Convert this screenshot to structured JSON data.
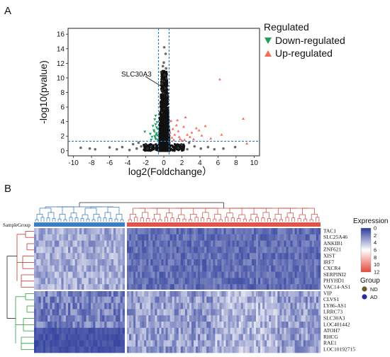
{
  "panel_a": {
    "letter": "A",
    "legend": {
      "title": "Regulated",
      "items": [
        {
          "label": "Down-regulated",
          "color": "#1f9e5a",
          "icon": "down-triangle-icon"
        },
        {
          "label": "Up-regulated",
          "color": "#f26f5e",
          "icon": "up-triangle-icon"
        }
      ]
    },
    "annotation": "SLC30A3",
    "chart_data": {
      "type": "scatter",
      "xlabel": "log2(Foldchange）",
      "ylabel": "-log10(pvalue)",
      "xlim": [
        -10.6,
        10.6
      ],
      "ylim": [
        -0.7,
        16.8
      ],
      "x_ticks": [
        "-10",
        "-8",
        "-6",
        "-4",
        "-2",
        "0",
        "2",
        "4",
        "6",
        "8",
        "10"
      ],
      "y_ticks": [
        "0",
        "2",
        "4",
        "6",
        "8",
        "10",
        "12",
        "14",
        "16"
      ],
      "threshold_lines": {
        "x": [
          -0.585,
          0.585
        ],
        "y": 1.3
      },
      "series": [
        {
          "name": "Down-regulated",
          "marker": "down-triangle",
          "color": "#1f9e5a",
          "points": [
            [
              -0.9,
              1.6
            ],
            [
              -1.0,
              2.0
            ],
            [
              -0.8,
              2.4
            ],
            [
              -1.1,
              2.8
            ],
            [
              -0.7,
              3.0
            ],
            [
              -1.2,
              3.4
            ],
            [
              -0.9,
              3.6
            ],
            [
              -0.75,
              3.9
            ],
            [
              -1.0,
              4.3
            ],
            [
              -0.85,
              2.2
            ],
            [
              -1.3,
              1.9
            ],
            [
              -0.7,
              1.5
            ],
            [
              -1.5,
              2.3
            ],
            [
              -0.95,
              1.8
            ],
            [
              -0.8,
              3.2
            ],
            [
              -1.05,
              2.6
            ],
            [
              -0.7,
              2.1
            ],
            [
              -2.1,
              2.6
            ],
            [
              -1.4,
              1.5
            ],
            [
              -0.9,
              4.8
            ]
          ]
        },
        {
          "name": "Up-regulated",
          "marker": "up-triangle",
          "color": "#f26f5e",
          "points": [
            [
              6.2,
              9.8
            ],
            [
              8.8,
              4.4
            ],
            [
              9.2,
              1.0
            ],
            [
              3.6,
              3.1
            ],
            [
              4.2,
              2.1
            ],
            [
              2.2,
              3.3
            ],
            [
              1.6,
              2.7
            ],
            [
              1.2,
              2.2
            ],
            [
              0.9,
              1.8
            ],
            [
              1.8,
              1.6
            ],
            [
              2.6,
              2.2
            ],
            [
              1.4,
              3.5
            ],
            [
              3.1,
              2.5
            ],
            [
              2.3,
              1.5
            ],
            [
              1.0,
              3.0
            ],
            [
              1.5,
              4.2
            ],
            [
              5.2,
              1.7
            ],
            [
              2.9,
              1.9
            ],
            [
              4.6,
              3.4
            ],
            [
              0.8,
              4.1
            ],
            [
              2.0,
              1.4
            ],
            [
              3.9,
              2.8
            ],
            [
              1.1,
              1.5
            ],
            [
              0.7,
              2.5
            ],
            [
              6.4,
              2.2
            ],
            [
              2.4,
              4.6
            ],
            [
              1.7,
              1.9
            ],
            [
              3.3,
              1.6
            ]
          ]
        },
        {
          "name": "Not significant",
          "marker": "circle",
          "color": "#3a3a3a",
          "points": [
            [
              -9.2,
              0.4
            ],
            [
              -8.2,
              0.3
            ],
            [
              -7.6,
              0.2
            ],
            [
              -6.0,
              0.45
            ],
            [
              -5.2,
              0.2
            ],
            [
              -4.6,
              0.5
            ],
            [
              -3.8,
              0.1
            ],
            [
              -3.0,
              0.3
            ],
            [
              -2.5,
              0.6
            ],
            [
              -2.0,
              0.9
            ],
            [
              -1.8,
              0.3
            ],
            [
              -1.4,
              0.6
            ],
            [
              -3.4,
              0.9
            ],
            [
              1.6,
              0.4
            ],
            [
              2.0,
              0.8
            ],
            [
              2.6,
              0.2
            ],
            [
              3.4,
              0.6
            ],
            [
              4.1,
              0.3
            ],
            [
              4.9,
              0.5
            ],
            [
              5.6,
              0.2
            ],
            [
              6.6,
              0.3
            ],
            [
              7.9,
              0.5
            ],
            [
              2.8,
              1.1
            ],
            [
              -2.8,
              1.1
            ],
            [
              0.2,
              13.3
            ],
            [
              0.0,
              12.1
            ],
            [
              -0.1,
              11.6
            ],
            [
              0.25,
              11.3
            ],
            [
              -0.3,
              10.8
            ],
            [
              0.1,
              10.4
            ],
            [
              0.3,
              9.9
            ],
            [
              -0.2,
              9.2
            ],
            [
              0.15,
              8.6
            ],
            [
              -0.05,
              7.9
            ],
            [
              0.4,
              7.6
            ],
            [
              -0.25,
              8.3
            ],
            [
              0.05,
              14.2
            ],
            [
              -0.15,
              9.6
            ]
          ]
        }
      ],
      "dense_cloud": {
        "x_spread": 0.55,
        "y_max": 11.0,
        "count": 1400
      }
    }
  },
  "panel_b": {
    "letter": "B",
    "sample_group_label": "SampleGroup",
    "legend": {
      "expression_title": "Expression",
      "scale_ticks": [
        "0",
        "2",
        "4",
        "6",
        "8",
        "10",
        "12"
      ],
      "scale_colors": [
        "#2b3b9a",
        "#ffffff",
        "#e5493c"
      ],
      "group_title": "Group",
      "groups": [
        {
          "label": "ND",
          "color": "#6b5a2a"
        },
        {
          "label": "AD",
          "color": "#2a2a9a"
        }
      ]
    },
    "genes_top": [
      "TAC1",
      "SLC25A46",
      "ANKIB1",
      "ZNF621",
      "XIST",
      "IRF7",
      "CXCR4",
      "SERPINI2",
      "PHYHD1",
      "VAC14-AS1"
    ],
    "genes_bottom": [
      "VIP",
      "CLVS1",
      "LY86-AS1",
      "LRRC73",
      "SLC30A3",
      "LOC401442",
      "ATOH7",
      "RHCG",
      "RAE1",
      "LOC10192715"
    ],
    "sample_groups": {
      "nd_count": 18,
      "ad_count": 40,
      "nd_color": "#3b7fc0",
      "ad_color": "#e2534a"
    }
  }
}
